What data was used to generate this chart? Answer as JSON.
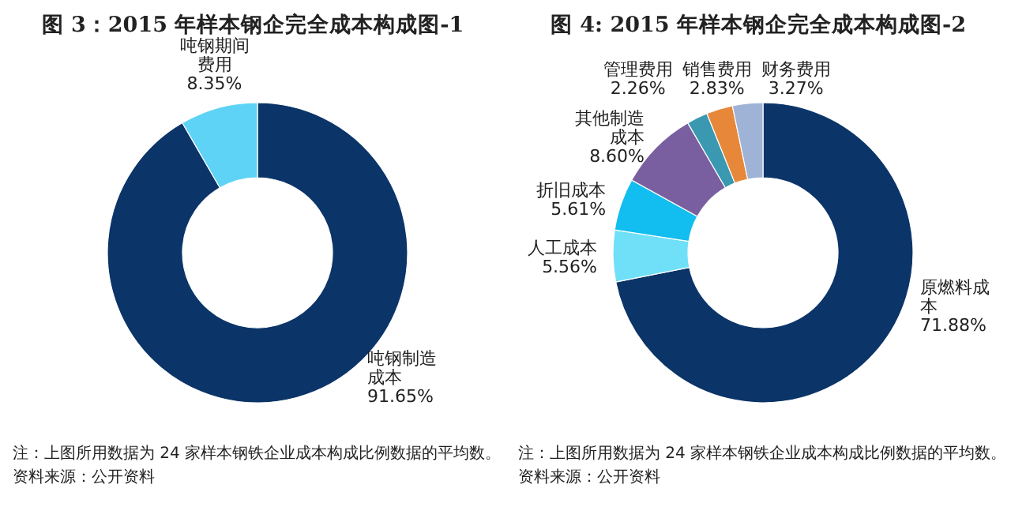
{
  "chart_data": [
    {
      "type": "donut",
      "title": "图 3：2015 年样本钢企完全成本构成图-1",
      "categories": [
        "吨钢制造成本",
        "吨钢期间费用"
      ],
      "values": [
        91.65,
        8.35
      ],
      "colors": [
        "#0b3468",
        "#5fd3f5"
      ],
      "value_labels": [
        "91.65%",
        "8.35%"
      ],
      "annotations": [
        "注：上图所用数据为 24 家样本钢铁企业成本构成比例数据的平均数。",
        "资料来源：公开资料"
      ]
    },
    {
      "type": "donut",
      "title": "图 4: 2015 年样本钢企完全成本构成图-2",
      "categories": [
        "原燃料成本",
        "人工成本",
        "折旧成本",
        "其他制造成本",
        "管理费用",
        "销售费用",
        "财务费用"
      ],
      "values": [
        71.88,
        5.56,
        5.61,
        8.6,
        2.26,
        2.83,
        3.27
      ],
      "colors": [
        "#0b3468",
        "#6fe0f7",
        "#12bdf0",
        "#7a5fa0",
        "#3a98b0",
        "#e6873a",
        "#9fb3d6"
      ],
      "value_labels": [
        "71.88%",
        "5.56%",
        "5.61%",
        "8.60%",
        "2.26%",
        "2.83%",
        "3.27%"
      ],
      "annotations": [
        "注：上图所用数据为 24 家样本钢铁企业成本构成比例数据的平均数。",
        "资料来源：公开资料"
      ]
    }
  ]
}
